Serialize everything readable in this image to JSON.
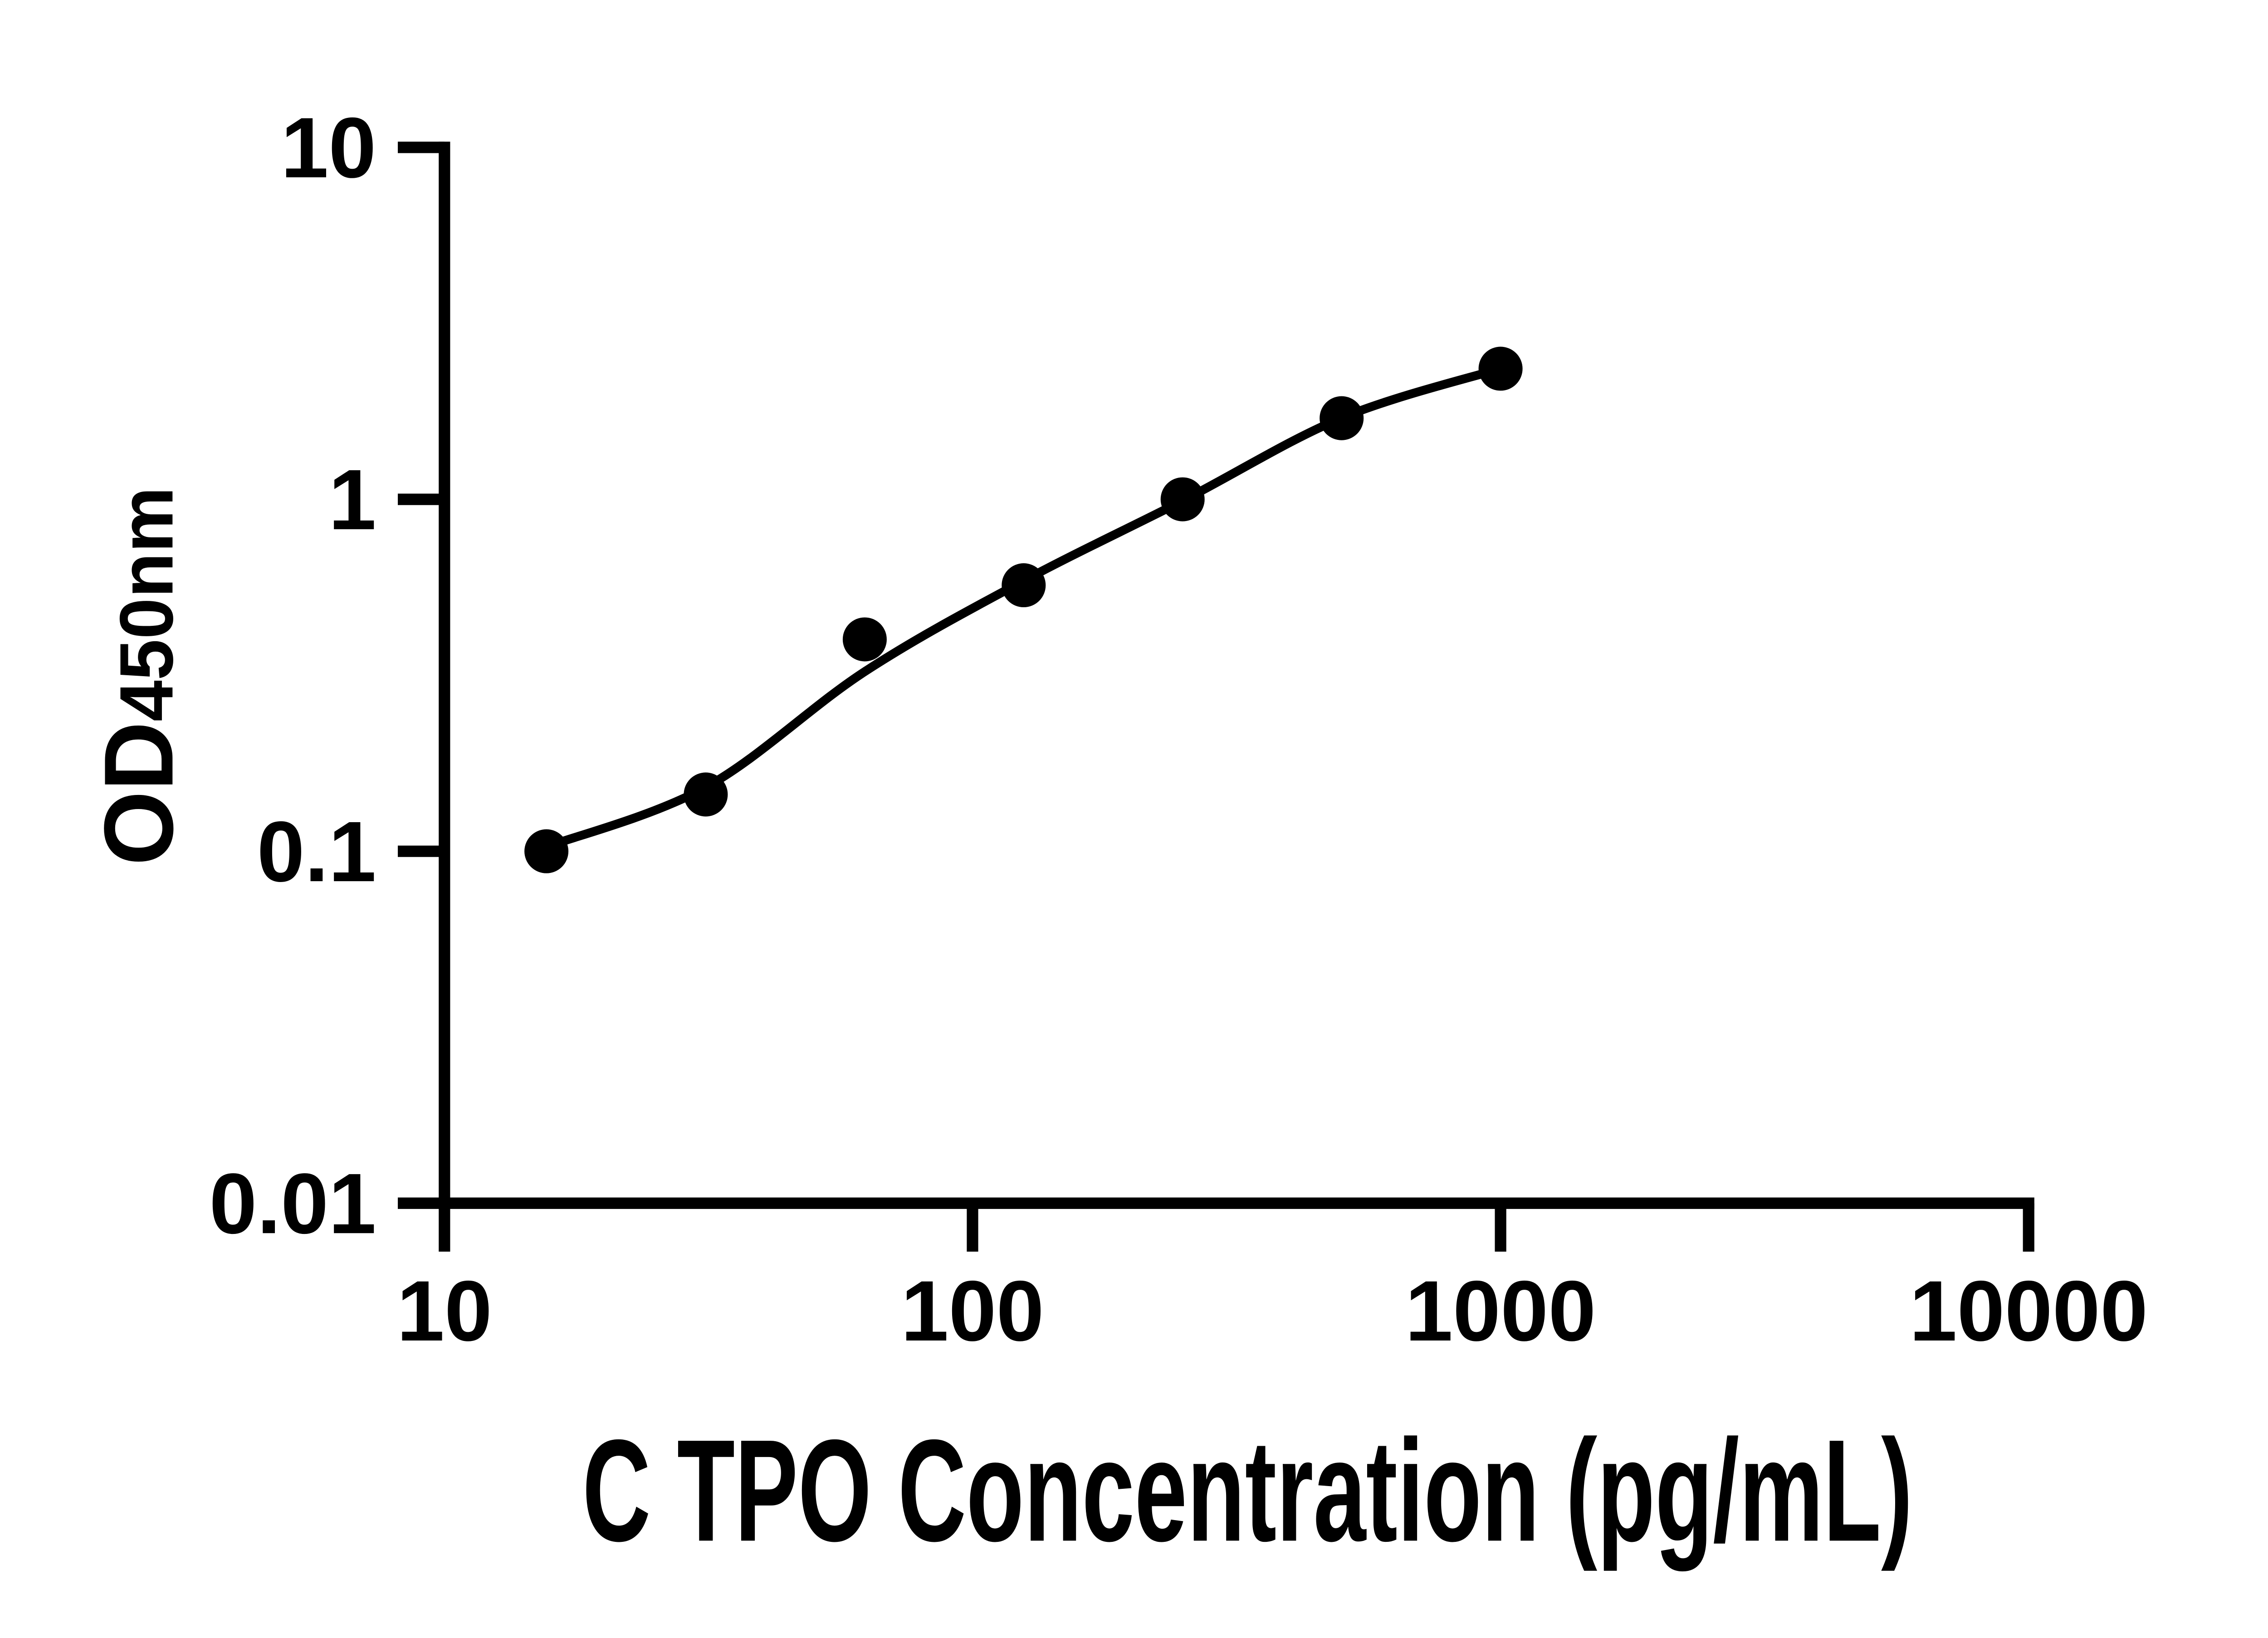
{
  "figure": {
    "background_color": "#ffffff",
    "ink_color": "#000000"
  },
  "chart_data": {
    "type": "scatter",
    "title": "",
    "xlabel": "C TPO Concentration (pg/mL)",
    "ylabel_main": "OD",
    "ylabel_sub": "450nm",
    "x_scale": "log",
    "y_scale": "log",
    "xlim": [
      10,
      10000
    ],
    "ylim": [
      0.01,
      10
    ],
    "grid": false,
    "legend": "none",
    "x_ticks": [
      {
        "value": 10,
        "label": "10"
      },
      {
        "value": 100,
        "label": "100"
      },
      {
        "value": 1000,
        "label": "1000"
      },
      {
        "value": 10000,
        "label": "10000"
      }
    ],
    "y_ticks": [
      {
        "value": 10,
        "label": "10"
      },
      {
        "value": 1,
        "label": "1"
      },
      {
        "value": 0.1,
        "label": "0.1"
      },
      {
        "value": 0.01,
        "label": "0.01"
      }
    ],
    "series": [
      {
        "name": "standard-points",
        "kind": "scatter",
        "marker": "filled-circle",
        "color": "#000000",
        "points": [
          {
            "x": 15.6,
            "y": 0.1
          },
          {
            "x": 31.25,
            "y": 0.145
          },
          {
            "x": 62.5,
            "y": 0.4
          },
          {
            "x": 125,
            "y": 0.57
          },
          {
            "x": 250,
            "y": 1.0
          },
          {
            "x": 500,
            "y": 1.7
          },
          {
            "x": 1000,
            "y": 2.35
          }
        ]
      },
      {
        "name": "fit-curve",
        "kind": "line",
        "color": "#000000",
        "points": [
          {
            "x": 15.6,
            "y": 0.103
          },
          {
            "x": 31.25,
            "y": 0.152
          },
          {
            "x": 62.5,
            "y": 0.324
          },
          {
            "x": 125,
            "y": 0.587
          },
          {
            "x": 250,
            "y": 0.991
          },
          {
            "x": 500,
            "y": 1.703
          },
          {
            "x": 1000,
            "y": 2.352
          }
        ]
      }
    ]
  }
}
